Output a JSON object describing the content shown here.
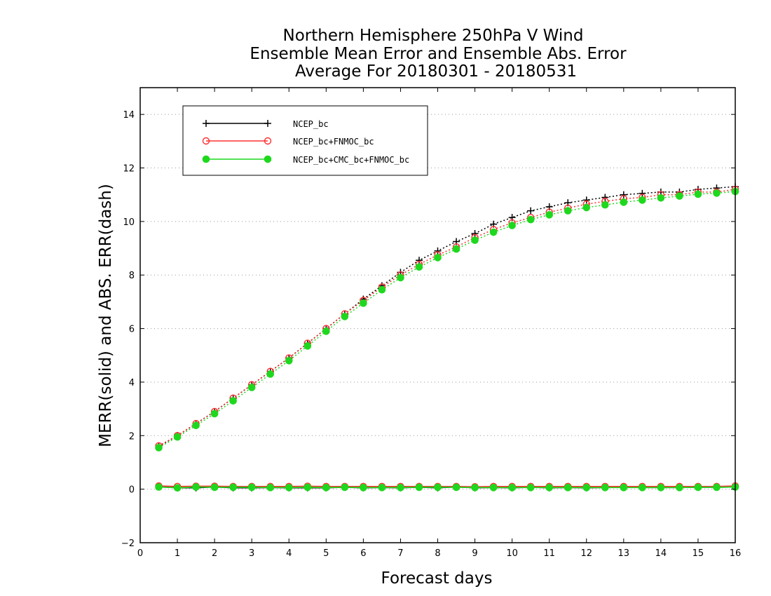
{
  "chart_data": {
    "type": "line",
    "title_lines": [
      "Northern Hemisphere 250hPa V Wind",
      "Ensemble Mean Error and Ensemble Abs. Error",
      "Average For 20180301 - 20180531"
    ],
    "xlabel": "Forecast days",
    "ylabel": "MERR(solid) and ABS. ERR(dash)",
    "xlim": [
      0,
      16
    ],
    "ylim": [
      -2,
      15
    ],
    "xticks": [
      0,
      1,
      2,
      3,
      4,
      5,
      6,
      7,
      8,
      9,
      10,
      11,
      12,
      13,
      14,
      15,
      16
    ],
    "yticks": [
      -2,
      0,
      2,
      4,
      6,
      8,
      10,
      12,
      14
    ],
    "grid": "y-dotted",
    "legend_position": "top-left",
    "x": [
      0.5,
      1,
      1.5,
      2,
      2.5,
      3,
      3.5,
      4,
      4.5,
      5,
      5.5,
      6,
      6.5,
      7,
      7.5,
      8,
      8.5,
      9,
      9.5,
      10,
      10.5,
      11,
      11.5,
      12,
      12.5,
      13,
      13.5,
      14,
      14.5,
      15,
      15.5,
      16
    ],
    "series": [
      {
        "name": "NCEP_bc",
        "color": "#000000",
        "marker": "plus",
        "abs_err": [
          1.6,
          2.0,
          2.45,
          2.9,
          3.4,
          3.9,
          4.4,
          4.9,
          5.45,
          6.0,
          6.55,
          7.1,
          7.6,
          8.1,
          8.55,
          8.9,
          9.25,
          9.55,
          9.9,
          10.15,
          10.4,
          10.55,
          10.7,
          10.8,
          10.9,
          11.0,
          11.05,
          11.1,
          11.1,
          11.2,
          11.25,
          11.3
        ],
        "mean_err": [
          0.1,
          0.05,
          0.05,
          0.08,
          0.05,
          0.05,
          0.06,
          0.05,
          0.05,
          0.05,
          0.07,
          0.05,
          0.06,
          0.05,
          0.07,
          0.05,
          0.08,
          0.05,
          0.06,
          0.05,
          0.07,
          0.05,
          0.06,
          0.05,
          0.06,
          0.07,
          0.06,
          0.06,
          0.06,
          0.07,
          0.07,
          0.08
        ]
      },
      {
        "name": "NCEP_bc+FNMOC_bc",
        "color": "#ff3030",
        "marker": "open-circle",
        "abs_err": [
          1.62,
          2.0,
          2.45,
          2.9,
          3.4,
          3.9,
          4.4,
          4.9,
          5.45,
          6.0,
          6.55,
          7.05,
          7.55,
          8.0,
          8.4,
          8.75,
          9.05,
          9.4,
          9.7,
          9.95,
          10.15,
          10.35,
          10.5,
          10.65,
          10.75,
          10.85,
          10.9,
          11.0,
          11.0,
          11.1,
          11.1,
          11.2
        ],
        "mean_err": [
          0.12,
          0.1,
          0.11,
          0.11,
          0.1,
          0.1,
          0.1,
          0.1,
          0.11,
          0.1,
          0.1,
          0.1,
          0.1,
          0.1,
          0.1,
          0.1,
          0.1,
          0.09,
          0.1,
          0.1,
          0.1,
          0.1,
          0.1,
          0.1,
          0.1,
          0.1,
          0.1,
          0.1,
          0.1,
          0.1,
          0.1,
          0.12
        ]
      },
      {
        "name": "NCEP_bc+CMC_bc+FNMOC_bc",
        "color": "#1ed81e",
        "marker": "filled-circle",
        "abs_err": [
          1.55,
          1.95,
          2.38,
          2.82,
          3.3,
          3.8,
          4.3,
          4.8,
          5.35,
          5.9,
          6.45,
          6.95,
          7.45,
          7.9,
          8.3,
          8.65,
          8.97,
          9.3,
          9.6,
          9.85,
          10.07,
          10.25,
          10.4,
          10.52,
          10.62,
          10.72,
          10.8,
          10.88,
          10.95,
          11.02,
          11.06,
          11.12
        ],
        "mean_err": [
          0.08,
          0.05,
          0.08,
          0.07,
          0.07,
          0.07,
          0.06,
          0.06,
          0.07,
          0.06,
          0.07,
          0.06,
          0.06,
          0.06,
          0.07,
          0.07,
          0.07,
          0.06,
          0.06,
          0.06,
          0.06,
          0.06,
          0.06,
          0.06,
          0.06,
          0.06,
          0.06,
          0.06,
          0.06,
          0.07,
          0.07,
          0.08
        ]
      }
    ]
  }
}
